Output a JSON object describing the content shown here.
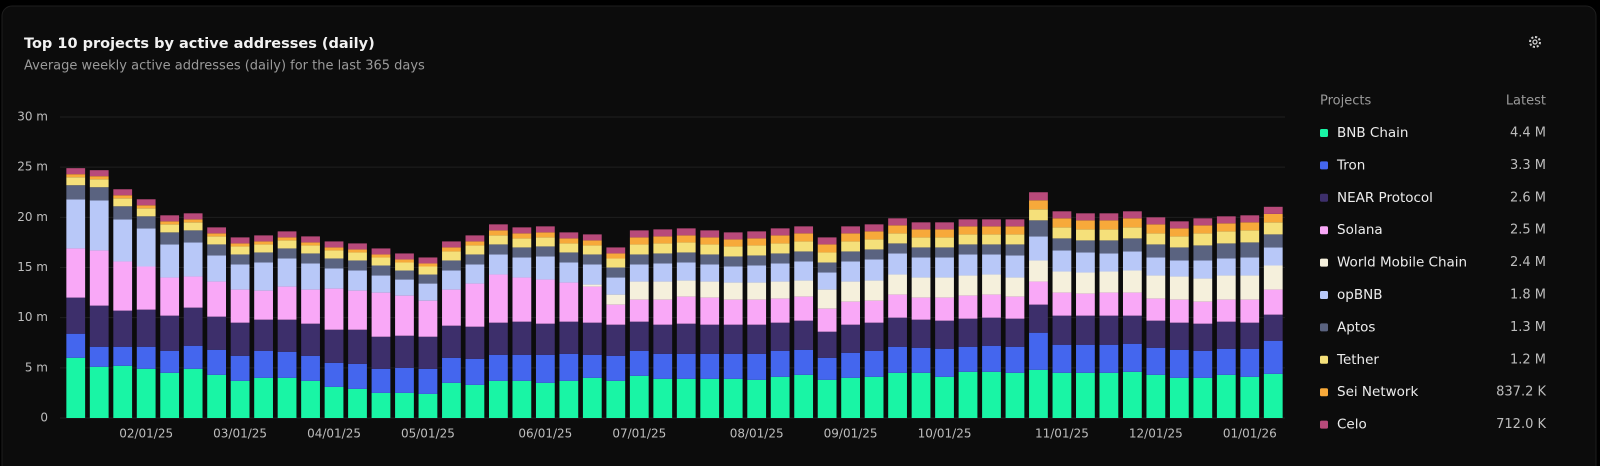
{
  "chart_data": {
    "type": "stacked-bar",
    "title": "Top 10 projects by active addresses (daily)",
    "subtitle": "Average weekly active addresses (daily) for the last 365 days",
    "legend_title": "Projects",
    "legend_value_title": "Latest",
    "categories": [
      null,
      null,
      null,
      "02/01/25",
      null,
      null,
      null,
      "03/01/25",
      null,
      null,
      null,
      "04/01/25",
      null,
      null,
      null,
      "05/01/25",
      null,
      null,
      null,
      null,
      "06/01/25",
      null,
      null,
      null,
      "07/01/25",
      null,
      null,
      null,
      null,
      "08/01/25",
      null,
      null,
      null,
      "09/01/25",
      null,
      null,
      null,
      "10/01/25",
      null,
      null,
      null,
      null,
      "11/01/25",
      null,
      null,
      null,
      "12/01/25",
      null,
      null,
      null,
      "01/01/26",
      null
    ],
    "ylim": [
      0,
      30
    ],
    "yticks": [
      0,
      {
        "value": 5,
        "label": "5 m"
      },
      {
        "value": 10,
        "label": "10 m"
      },
      {
        "value": 15,
        "label": "15 m"
      },
      {
        "value": 20,
        "label": "20 m"
      },
      {
        "value": 25,
        "label": "25 m"
      },
      {
        "value": 30,
        "label": "30 m"
      }
    ],
    "grid": true,
    "series": [
      {
        "name": "BNB Chain",
        "color": "#19f5a5",
        "latest": "4.4 M",
        "values": [
          6.0,
          5.1,
          5.2,
          4.9,
          4.5,
          4.9,
          4.3,
          3.7,
          4.0,
          4.0,
          3.7,
          3.1,
          2.9,
          2.5,
          2.5,
          2.4,
          3.5,
          3.3,
          3.7,
          3.7,
          3.5,
          3.7,
          4.0,
          3.7,
          4.2,
          3.9,
          3.9,
          3.9,
          3.9,
          3.8,
          4.1,
          4.3,
          3.8,
          4.0,
          4.1,
          4.5,
          4.5,
          4.1,
          4.6,
          4.6,
          4.5,
          4.8,
          4.5,
          4.5,
          4.5,
          4.6,
          4.3,
          4.0,
          4.0,
          4.3,
          4.1,
          4.4
        ]
      },
      {
        "name": "Tron",
        "color": "#4466ee",
        "latest": "3.3 M",
        "values": [
          2.4,
          2.0,
          1.9,
          2.2,
          2.2,
          2.3,
          2.5,
          2.5,
          2.7,
          2.6,
          2.5,
          2.4,
          2.5,
          2.4,
          2.5,
          2.5,
          2.5,
          2.6,
          2.6,
          2.6,
          2.8,
          2.7,
          2.3,
          2.5,
          2.5,
          2.5,
          2.5,
          2.5,
          2.5,
          2.6,
          2.6,
          2.5,
          2.2,
          2.5,
          2.6,
          2.6,
          2.5,
          2.8,
          2.5,
          2.6,
          2.6,
          3.7,
          2.8,
          2.8,
          2.8,
          2.8,
          2.7,
          2.8,
          2.7,
          2.6,
          2.8,
          3.3
        ]
      },
      {
        "name": "NEAR Protocol",
        "color": "#3d2f6b",
        "latest": "2.6 M",
        "values": [
          3.6,
          4.1,
          3.6,
          3.7,
          3.5,
          3.8,
          3.3,
          3.3,
          3.1,
          3.2,
          3.2,
          3.3,
          3.4,
          3.2,
          3.2,
          3.2,
          3.2,
          3.2,
          3.2,
          3.3,
          3.1,
          3.2,
          3.2,
          3.1,
          2.9,
          2.9,
          3.0,
          2.9,
          2.9,
          2.9,
          2.8,
          2.9,
          2.6,
          2.8,
          2.8,
          2.9,
          2.8,
          2.8,
          2.8,
          2.8,
          2.8,
          2.8,
          2.9,
          2.9,
          2.9,
          2.8,
          2.7,
          2.7,
          2.7,
          2.7,
          2.6,
          2.6
        ]
      },
      {
        "name": "Solana",
        "color": "#f9a8f7",
        "latest": "2.5 M",
        "values": [
          4.9,
          5.5,
          4.9,
          4.3,
          3.8,
          3.1,
          3.5,
          3.3,
          2.9,
          3.3,
          3.4,
          4.1,
          3.9,
          4.4,
          4.0,
          3.6,
          3.6,
          4.3,
          4.8,
          4.4,
          4.4,
          3.9,
          3.6,
          2.0,
          2.2,
          2.5,
          2.7,
          2.7,
          2.5,
          2.5,
          2.4,
          2.4,
          2.3,
          2.3,
          2.2,
          2.3,
          2.2,
          2.3,
          2.3,
          2.3,
          2.2,
          2.3,
          2.3,
          2.2,
          2.3,
          2.3,
          2.2,
          2.3,
          2.2,
          2.2,
          2.3,
          2.5
        ]
      },
      {
        "name": "World Mobile Chain",
        "color": "#f5f0dc",
        "latest": "2.4 M",
        "values": [
          0,
          0,
          0,
          0,
          0,
          0,
          0,
          0,
          0,
          0,
          0,
          0,
          0,
          0,
          0,
          0,
          0,
          0,
          0,
          0,
          0,
          0,
          0.2,
          1.0,
          1.8,
          1.8,
          1.6,
          1.6,
          1.7,
          1.7,
          1.7,
          1.6,
          1.9,
          2.0,
          2.0,
          2.0,
          2.0,
          2.0,
          2.0,
          2.0,
          1.9,
          2.1,
          2.1,
          2.1,
          2.1,
          2.2,
          2.3,
          2.3,
          2.3,
          2.4,
          2.4,
          2.4
        ]
      },
      {
        "name": "opBNB",
        "color": "#b8c8f8",
        "latest": "1.8 M",
        "values": [
          4.9,
          5.0,
          4.2,
          3.8,
          3.3,
          3.4,
          2.6,
          2.5,
          2.8,
          2.8,
          2.6,
          2.0,
          2.0,
          1.7,
          1.6,
          1.7,
          1.9,
          1.9,
          2.0,
          2.0,
          2.3,
          2.0,
          2.0,
          1.7,
          1.7,
          1.8,
          1.8,
          1.7,
          1.6,
          1.7,
          1.8,
          1.9,
          1.7,
          2.0,
          2.1,
          2.1,
          2.0,
          2.0,
          2.1,
          2.0,
          2.2,
          2.4,
          2.1,
          2.0,
          1.8,
          1.9,
          1.8,
          1.6,
          1.8,
          1.7,
          1.8,
          1.8
        ]
      },
      {
        "name": "Aptos",
        "color": "#5a6380",
        "latest": "1.3 M",
        "values": [
          1.4,
          1.3,
          1.3,
          1.2,
          1.2,
          1.2,
          1.1,
          1.0,
          1.0,
          1.0,
          1.0,
          1.0,
          1.0,
          1.0,
          0.9,
          0.9,
          1.0,
          1.0,
          1.0,
          1.0,
          1.0,
          1.0,
          1.0,
          1.0,
          1.0,
          1.0,
          1.0,
          1.0,
          1.0,
          1.0,
          1.0,
          1.0,
          1.0,
          1.0,
          1.0,
          1.0,
          1.0,
          1.0,
          1.0,
          1.0,
          1.1,
          1.6,
          1.2,
          1.2,
          1.3,
          1.3,
          1.3,
          1.3,
          1.5,
          1.5,
          1.5,
          1.3
        ]
      },
      {
        "name": "Tether",
        "color": "#f5e07a",
        "latest": "1.2 M",
        "values": [
          0.8,
          0.8,
          0.8,
          0.8,
          0.8,
          0.8,
          0.8,
          0.8,
          0.8,
          0.8,
          0.8,
          0.8,
          0.8,
          0.8,
          0.8,
          0.8,
          0.9,
          0.9,
          0.9,
          0.9,
          0.9,
          0.9,
          0.9,
          0.9,
          1.0,
          1.0,
          1.0,
          1.0,
          1.0,
          1.0,
          1.0,
          1.0,
          1.0,
          1.0,
          1.0,
          1.0,
          1.0,
          1.0,
          1.0,
          1.0,
          1.0,
          1.1,
          1.1,
          1.1,
          1.1,
          1.1,
          1.1,
          1.1,
          1.2,
          1.2,
          1.2,
          1.2
        ]
      },
      {
        "name": "Sei Network",
        "color": "#f7a93a",
        "latest": "837.2 K",
        "values": [
          0.3,
          0.3,
          0.3,
          0.3,
          0.3,
          0.3,
          0.3,
          0.3,
          0.3,
          0.3,
          0.3,
          0.3,
          0.3,
          0.3,
          0.3,
          0.3,
          0.4,
          0.4,
          0.5,
          0.5,
          0.5,
          0.5,
          0.5,
          0.5,
          0.7,
          0.7,
          0.7,
          0.7,
          0.7,
          0.7,
          0.8,
          0.8,
          0.8,
          0.8,
          0.8,
          0.8,
          0.8,
          0.8,
          0.8,
          0.8,
          0.8,
          0.9,
          0.9,
          0.9,
          0.9,
          0.9,
          0.9,
          0.8,
          0.8,
          0.8,
          0.8,
          0.84
        ]
      },
      {
        "name": "Celo",
        "color": "#b84a7a",
        "latest": "712.0 K",
        "values": [
          0.6,
          0.6,
          0.6,
          0.6,
          0.6,
          0.6,
          0.6,
          0.6,
          0.6,
          0.6,
          0.6,
          0.6,
          0.6,
          0.6,
          0.6,
          0.6,
          0.6,
          0.6,
          0.6,
          0.6,
          0.6,
          0.6,
          0.6,
          0.6,
          0.7,
          0.7,
          0.7,
          0.7,
          0.7,
          0.7,
          0.7,
          0.7,
          0.7,
          0.7,
          0.7,
          0.7,
          0.7,
          0.7,
          0.7,
          0.7,
          0.7,
          0.8,
          0.7,
          0.7,
          0.7,
          0.7,
          0.7,
          0.7,
          0.7,
          0.7,
          0.7,
          0.71
        ]
      }
    ]
  }
}
